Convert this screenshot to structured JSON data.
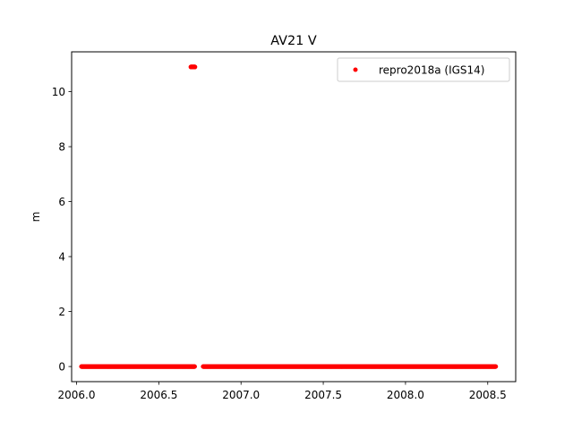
{
  "chart_data": {
    "type": "scatter",
    "title": "AV21 V",
    "xlabel": "",
    "ylabel": "m",
    "xlim": [
      2005.97,
      2008.67
    ],
    "ylim": [
      -0.55,
      11.45
    ],
    "xticks": [
      2006.0,
      2006.5,
      2007.0,
      2007.5,
      2008.0,
      2008.5
    ],
    "xtick_labels": [
      "2006.0",
      "2006.5",
      "2007.0",
      "2007.5",
      "2008.0",
      "2008.5"
    ],
    "yticks": [
      0,
      2,
      4,
      6,
      8,
      10
    ],
    "ytick_labels": [
      "0",
      "2",
      "4",
      "6",
      "8",
      "10"
    ],
    "grid": false,
    "legend_position": "upper-right",
    "series": [
      {
        "name": "repro2018a (IGS14)",
        "color": "#ff0000",
        "marker": "circle",
        "segments": [
          {
            "x_start": 2006.03,
            "x_end": 2006.72,
            "y": 0.0,
            "step": 0.00274,
            "note_outlier": false
          },
          {
            "x_start": 2006.695,
            "x_end": 2006.72,
            "y": 10.9,
            "step": 0.00274,
            "note_outlier": true
          },
          {
            "x_start": 2006.77,
            "x_end": 2008.55,
            "y": 0.0,
            "step": 0.00274,
            "note_outlier": false
          }
        ]
      }
    ]
  }
}
